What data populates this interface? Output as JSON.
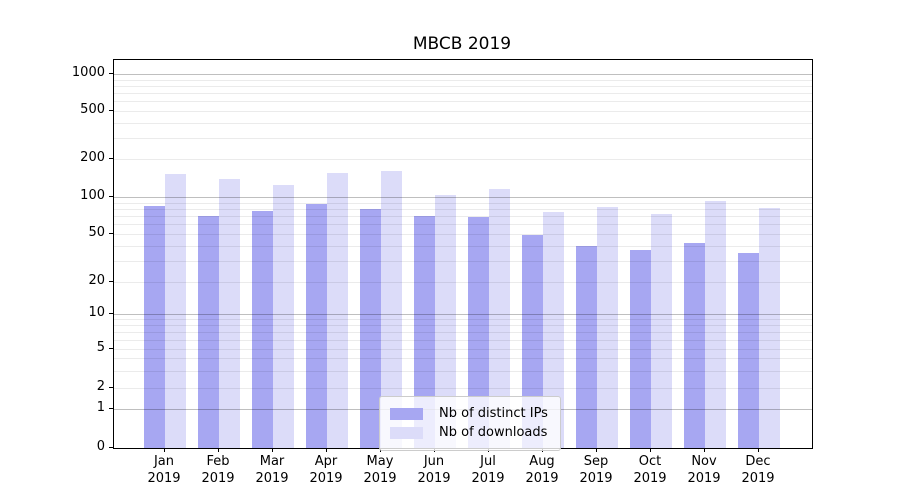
{
  "title": "MBCB 2019",
  "chart_data": {
    "type": "bar",
    "title": "MBCB 2019",
    "categories": [
      "Jan 2019",
      "Feb 2019",
      "Mar 2019",
      "Apr 2019",
      "May 2019",
      "Jun 2019",
      "Jul 2019",
      "Aug 2019",
      "Sep 2019",
      "Oct 2019",
      "Nov 2019",
      "Dec 2019"
    ],
    "series": [
      {
        "name": "Nb of distinct IPs",
        "color": "#a7a7f2",
        "values": [
          85,
          70,
          77,
          88,
          80,
          70,
          69,
          49,
          40,
          37,
          42,
          35
        ]
      },
      {
        "name": "Nb of downloads",
        "color": "#dcdcf9",
        "values": [
          153,
          138,
          124,
          155,
          162,
          103,
          116,
          76,
          83,
          73,
          93,
          82
        ]
      }
    ],
    "yscale": "log-like with 0 baseline",
    "yticks": [
      0,
      1,
      2,
      5,
      10,
      20,
      50,
      100,
      200,
      500,
      1000
    ],
    "ylim": [
      0,
      1150
    ],
    "xlabel": "",
    "ylabel": "",
    "grid": true,
    "legend_position": "lower center"
  }
}
